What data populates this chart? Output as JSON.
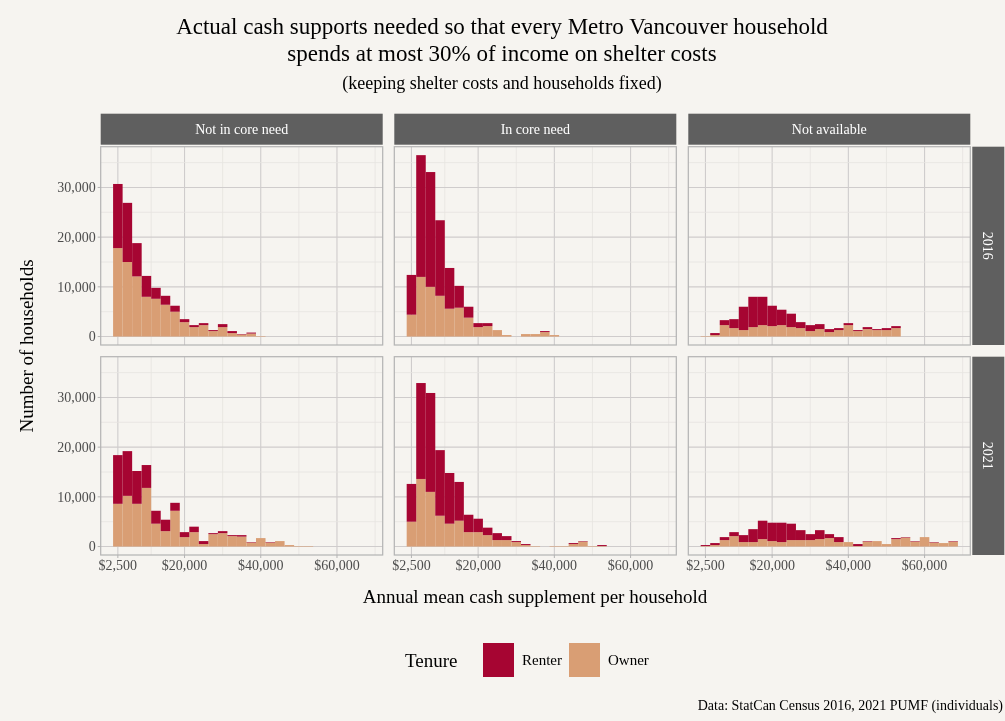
{
  "chart_data": [
    {
      "type": "other",
      "title": "Actual cash supports needed so that every Metro Vancouver household spends at most 30% of income on shelter costs",
      "subtitle": "(keeping shelter costs and households fixed)",
      "xlabel": "Annual mean cash supplement per household",
      "ylabel": "Number of households",
      "annotations": [
        "Data: StatCan Census 2016, 2021 PUMF (individuals)"
      ]
    },
    {
      "type": "bar",
      "title": "Not in core need",
      "stacked": true,
      "grid": true,
      "legend": "bottom",
      "legend_title": "Tenure",
      "tick_labels": "y",
      "x": [
        2500,
        5000,
        7500,
        10000,
        12500,
        15000,
        17500,
        20000,
        22500,
        25000,
        27500,
        30000,
        32500,
        35000,
        37500,
        40000,
        42500,
        45000,
        47500,
        50000,
        52500,
        55000,
        57500,
        60000,
        62500,
        65000,
        67500
      ],
      "series": [
        {
          "name": "Owner",
          "color": "#d99e74",
          "values": [
            17800,
            15000,
            12100,
            8000,
            7600,
            6400,
            5000,
            2900,
            1900,
            2300,
            1100,
            1900,
            700,
            400,
            600,
            100,
            0,
            0,
            0,
            0,
            0,
            0,
            0,
            0,
            0,
            0,
            0
          ]
        },
        {
          "name": "Renter",
          "color": "#a60532",
          "values": [
            12900,
            11900,
            6700,
            4200,
            2200,
            1800,
            1200,
            600,
            400,
            400,
            200,
            600,
            400,
            100,
            200,
            0,
            0,
            0,
            0,
            0,
            0,
            0,
            0,
            0,
            0,
            0,
            0
          ]
        }
      ],
      "xlim": [
        -2000,
        72000
      ],
      "xticks": [
        {
          "value": 2500,
          "label": null
        },
        {
          "value": 11250,
          "label": null
        },
        {
          "value": 20000,
          "label": null
        },
        {
          "value": 30000,
          "label": null
        },
        {
          "value": 40000,
          "label": null
        },
        {
          "value": 50000,
          "label": null
        },
        {
          "value": 60000,
          "label": null
        },
        {
          "value": 70000,
          "label": null
        }
      ],
      "ylim": [
        -1700,
        38200
      ],
      "yticks": [
        {
          "value": 0,
          "label": "0"
        },
        {
          "value": 5000,
          "label": null
        },
        {
          "value": 10000,
          "label": "10,000"
        },
        {
          "value": 15000,
          "label": null
        },
        {
          "value": 20000,
          "label": "20,000"
        },
        {
          "value": 25000,
          "label": null
        },
        {
          "value": 30000,
          "label": "30,000"
        },
        {
          "value": 35000,
          "label": null
        }
      ]
    },
    {
      "type": "bar",
      "title": "In core need",
      "stacked": true,
      "grid": true,
      "tick_labels": false,
      "x": [
        2500,
        5000,
        7500,
        10000,
        12500,
        15000,
        17500,
        20000,
        22500,
        25000,
        27500,
        30000,
        32500,
        35000,
        37500,
        40000,
        42500,
        45000,
        47500,
        50000,
        52500,
        55000,
        57500,
        60000,
        62500,
        65000,
        67500
      ],
      "series": [
        {
          "color": "#d99e74",
          "values": [
            4400,
            12000,
            10000,
            8200,
            5600,
            5800,
            3800,
            1900,
            2100,
            1300,
            300,
            0,
            500,
            500,
            900,
            300,
            0,
            0,
            0,
            0,
            0,
            0,
            0,
            0,
            0,
            0,
            0
          ]
        },
        {
          "color": "#a60532",
          "values": [
            8000,
            24500,
            23100,
            15200,
            8200,
            4400,
            2200,
            800,
            600,
            0,
            0,
            0,
            0,
            0,
            200,
            0,
            0,
            0,
            0,
            0,
            0,
            0,
            0,
            0,
            0,
            0,
            0
          ]
        }
      ],
      "xlim": [
        -2000,
        72000
      ],
      "xticks": [
        {
          "value": 2500,
          "label": null
        },
        {
          "value": 11250,
          "label": null
        },
        {
          "value": 20000,
          "label": null
        },
        {
          "value": 30000,
          "label": null
        },
        {
          "value": 40000,
          "label": null
        },
        {
          "value": 50000,
          "label": null
        },
        {
          "value": 60000,
          "label": null
        },
        {
          "value": 70000,
          "label": null
        }
      ],
      "ylim": [
        -1700,
        38200
      ],
      "yticks": [
        {
          "value": 0,
          "label": null
        },
        {
          "value": 5000,
          "label": null
        },
        {
          "value": 10000,
          "label": null
        },
        {
          "value": 15000,
          "label": null
        },
        {
          "value": 20000,
          "label": null
        },
        {
          "value": 25000,
          "label": null
        },
        {
          "value": 30000,
          "label": null
        },
        {
          "value": 35000,
          "label": null
        }
      ]
    },
    {
      "type": "bar",
      "title": "Not available",
      "y2label": "2016",
      "stacked": true,
      "grid": true,
      "tick_labels": false,
      "x": [
        2500,
        5000,
        7500,
        10000,
        12500,
        15000,
        17500,
        20000,
        22500,
        25000,
        27500,
        30000,
        32500,
        35000,
        37500,
        40000,
        42500,
        45000,
        47500,
        50000,
        52500,
        55000,
        57500,
        60000,
        62500,
        65000,
        67500
      ],
      "series": [
        {
          "color": "#d99e74",
          "values": [
            100,
            300,
            2300,
            1700,
            1300,
            1900,
            2300,
            2100,
            2300,
            1900,
            1700,
            1100,
            1500,
            900,
            1300,
            2300,
            1100,
            1500,
            1300,
            1300,
            1700,
            0,
            0,
            0,
            0,
            0,
            0
          ]
        },
        {
          "color": "#a60532",
          "values": [
            0,
            400,
            1000,
            1800,
            4700,
            6100,
            5700,
            4100,
            3100,
            2700,
            1200,
            1200,
            1000,
            600,
            400,
            400,
            200,
            400,
            200,
            400,
            400,
            0,
            0,
            0,
            0,
            0,
            0
          ]
        }
      ],
      "xlim": [
        -2000,
        72000
      ],
      "xticks": [
        {
          "value": 2500,
          "label": null
        },
        {
          "value": 11250,
          "label": null
        },
        {
          "value": 20000,
          "label": null
        },
        {
          "value": 30000,
          "label": null
        },
        {
          "value": 40000,
          "label": null
        },
        {
          "value": 50000,
          "label": null
        },
        {
          "value": 60000,
          "label": null
        },
        {
          "value": 70000,
          "label": null
        }
      ],
      "ylim": [
        -1700,
        38200
      ],
      "yticks": [
        {
          "value": 0,
          "label": null
        },
        {
          "value": 5000,
          "label": null
        },
        {
          "value": 10000,
          "label": null
        },
        {
          "value": 15000,
          "label": null
        },
        {
          "value": 20000,
          "label": null
        },
        {
          "value": 25000,
          "label": null
        },
        {
          "value": 30000,
          "label": null
        },
        {
          "value": 35000,
          "label": null
        }
      ]
    },
    {
      "type": "bar",
      "stacked": true,
      "grid": true,
      "x": [
        2500,
        5000,
        7500,
        10000,
        12500,
        15000,
        17500,
        20000,
        22500,
        25000,
        27500,
        30000,
        32500,
        35000,
        37500,
        40000,
        42500,
        45000,
        47500,
        50000,
        52500,
        55000,
        57500,
        60000,
        62500,
        65000,
        67500
      ],
      "series": [
        {
          "color": "#d99e74",
          "values": [
            8600,
            10200,
            8600,
            11800,
            4600,
            3100,
            7200,
            1900,
            2900,
            500,
            2500,
            2700,
            2100,
            2000,
            800,
            1700,
            800,
            1100,
            300,
            100,
            100,
            0,
            0,
            0,
            0,
            0,
            0
          ]
        },
        {
          "color": "#a60532",
          "values": [
            9800,
            9000,
            6600,
            4600,
            2600,
            2300,
            1600,
            1000,
            1100,
            600,
            200,
            400,
            200,
            300,
            100,
            0,
            100,
            0,
            0,
            0,
            0,
            0,
            0,
            0,
            0,
            0,
            0
          ]
        }
      ],
      "xlim": [
        -2000,
        72000
      ],
      "xticks": [
        {
          "value": 2500,
          "label": "$2,500"
        },
        {
          "value": 11250,
          "label": null
        },
        {
          "value": 20000,
          "label": "$20,000"
        },
        {
          "value": 30000,
          "label": null
        },
        {
          "value": 40000,
          "label": "$40,000"
        },
        {
          "value": 50000,
          "label": null
        },
        {
          "value": 60000,
          "label": "$60,000"
        },
        {
          "value": 70000,
          "label": null
        }
      ],
      "ylim": [
        -1700,
        38200
      ],
      "yticks": [
        {
          "value": 0,
          "label": "0"
        },
        {
          "value": 5000,
          "label": null
        },
        {
          "value": 10000,
          "label": "10,000"
        },
        {
          "value": 15000,
          "label": null
        },
        {
          "value": 20000,
          "label": "20,000"
        },
        {
          "value": 25000,
          "label": null
        },
        {
          "value": 30000,
          "label": "30,000"
        },
        {
          "value": 35000,
          "label": null
        }
      ]
    },
    {
      "type": "bar",
      "stacked": true,
      "grid": true,
      "tick_labels": "x",
      "x": [
        2500,
        5000,
        7500,
        10000,
        12500,
        15000,
        17500,
        20000,
        22500,
        25000,
        27500,
        30000,
        32500,
        35000,
        37500,
        40000,
        42500,
        45000,
        47500,
        50000,
        52500,
        55000,
        57500,
        60000,
        62500,
        65000,
        67500
      ],
      "series": [
        {
          "color": "#d99e74",
          "values": [
            5000,
            13600,
            11000,
            6200,
            4600,
            5200,
            2900,
            2900,
            2300,
            1300,
            1300,
            900,
            300,
            100,
            0,
            100,
            100,
            500,
            1000,
            100,
            100,
            0,
            0,
            0,
            0,
            0,
            0
          ]
        },
        {
          "color": "#a60532",
          "values": [
            7600,
            19300,
            19900,
            13200,
            10200,
            7800,
            3500,
            2700,
            1500,
            1400,
            800,
            200,
            200,
            0,
            0,
            0,
            0,
            200,
            100,
            0,
            200,
            0,
            0,
            0,
            0,
            0,
            0
          ]
        }
      ],
      "xlim": [
        -2000,
        72000
      ],
      "xticks": [
        {
          "value": 2500,
          "label": "$2,500"
        },
        {
          "value": 11250,
          "label": null
        },
        {
          "value": 20000,
          "label": "$20,000"
        },
        {
          "value": 30000,
          "label": null
        },
        {
          "value": 40000,
          "label": "$40,000"
        },
        {
          "value": 50000,
          "label": null
        },
        {
          "value": 60000,
          "label": "$60,000"
        },
        {
          "value": 70000,
          "label": null
        }
      ],
      "ylim": [
        -1700,
        38200
      ],
      "yticks": [
        {
          "value": 0,
          "label": null
        },
        {
          "value": 5000,
          "label": null
        },
        {
          "value": 10000,
          "label": null
        },
        {
          "value": 15000,
          "label": null
        },
        {
          "value": 20000,
          "label": null
        },
        {
          "value": 25000,
          "label": null
        },
        {
          "value": 30000,
          "label": null
        },
        {
          "value": 35000,
          "label": null
        }
      ]
    },
    {
      "type": "bar",
      "y2label": "2021",
      "stacked": true,
      "grid": true,
      "tick_labels": "x",
      "x": [
        2500,
        5000,
        7500,
        10000,
        12500,
        15000,
        17500,
        20000,
        22500,
        25000,
        27500,
        30000,
        32500,
        35000,
        37500,
        40000,
        42500,
        45000,
        47500,
        50000,
        52500,
        55000,
        57500,
        60000,
        62500,
        65000,
        67500
      ],
      "series": [
        {
          "color": "#d99e74",
          "values": [
            100,
            300,
            1300,
            2100,
            900,
            900,
            1500,
            1100,
            900,
            1300,
            1300,
            1300,
            1500,
            1700,
            900,
            900,
            100,
            1000,
            1100,
            500,
            1500,
            1800,
            1000,
            1900,
            800,
            700,
            1000
          ]
        },
        {
          "color": "#a60532",
          "values": [
            200,
            400,
            600,
            800,
            1400,
            2600,
            3700,
            3700,
            3900,
            3300,
            2000,
            1200,
            1800,
            800,
            1000,
            0,
            400,
            100,
            0,
            0,
            200,
            100,
            100,
            0,
            100,
            0,
            100
          ]
        }
      ],
      "xlim": [
        -2000,
        72000
      ],
      "xticks": [
        {
          "value": 2500,
          "label": "$2,500"
        },
        {
          "value": 11250,
          "label": null
        },
        {
          "value": 20000,
          "label": "$20,000"
        },
        {
          "value": 30000,
          "label": null
        },
        {
          "value": 40000,
          "label": "$40,000"
        },
        {
          "value": 50000,
          "label": null
        },
        {
          "value": 60000,
          "label": "$60,000"
        },
        {
          "value": 70000,
          "label": null
        }
      ],
      "ylim": [
        -1700,
        38200
      ],
      "yticks": [
        {
          "value": 0,
          "label": null
        },
        {
          "value": 5000,
          "label": null
        },
        {
          "value": 10000,
          "label": null
        },
        {
          "value": 15000,
          "label": null
        },
        {
          "value": 20000,
          "label": null
        },
        {
          "value": 25000,
          "label": null
        },
        {
          "value": 30000,
          "label": null
        },
        {
          "value": 35000,
          "label": null
        }
      ]
    }
  ]
}
